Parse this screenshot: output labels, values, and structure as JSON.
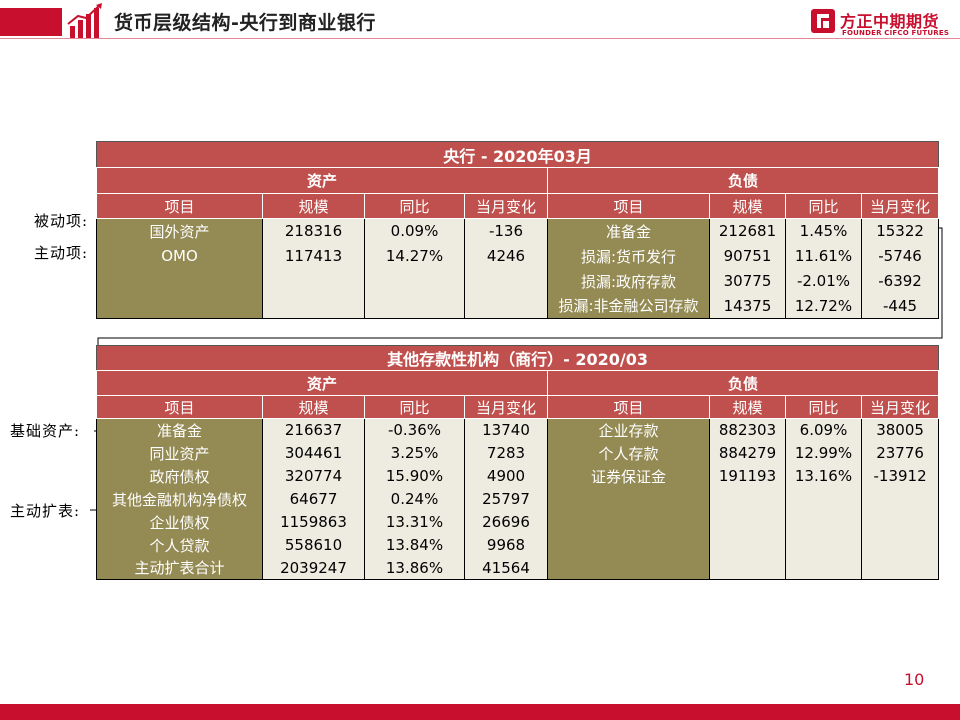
{
  "header": {
    "title": "货币层级结构-央行到商业银行",
    "logo_cn": "方正中期期货",
    "logo_en": "FOUNDER CIFCO FUTURES"
  },
  "colors": {
    "brand_red": "#c8102e",
    "header_red": "#c0504d",
    "olive": "#948a54",
    "beige": "#eeece1"
  },
  "annotations": {
    "passive": "被动项:",
    "active": "主动项:",
    "base_assets": "基础资产:",
    "active_expansion": "主动扩表:"
  },
  "table1": {
    "title": "央行 - 2020年03月",
    "assets_label": "资产",
    "liabilities_label": "负债",
    "columns": [
      "项目",
      "规模",
      "同比",
      "当月变化",
      "项目",
      "规模",
      "同比",
      "当月变化"
    ],
    "rows": [
      [
        "国外资产",
        "218316",
        "0.09%",
        "-136",
        "准备金",
        "212681",
        "1.45%",
        "15322"
      ],
      [
        "OMO",
        "117413",
        "14.27%",
        "4246",
        "损漏:货币发行",
        "90751",
        "11.61%",
        "-5746"
      ],
      [
        "",
        "",
        "",
        "",
        "损漏:政府存款",
        "30775",
        "-2.01%",
        "-6392"
      ],
      [
        "",
        "",
        "",
        "",
        "损漏:非金融公司存款",
        "14375",
        "12.72%",
        "-445"
      ]
    ]
  },
  "table2": {
    "title": "其他存款性机构（商行）- 2020/03",
    "assets_label": "资产",
    "liabilities_label": "负债",
    "columns": [
      "项目",
      "规模",
      "同比",
      "当月变化",
      "项目",
      "规模",
      "同比",
      "当月变化"
    ],
    "rows": [
      [
        "准备金",
        "216637",
        "-0.36%",
        "13740",
        "企业存款",
        "882303",
        "6.09%",
        "38005"
      ],
      [
        "同业资产",
        "304461",
        "3.25%",
        "7283",
        "个人存款",
        "884279",
        "12.99%",
        "23776"
      ],
      [
        "政府债权",
        "320774",
        "15.90%",
        "4900",
        "证券保证金",
        "191193",
        "13.16%",
        "-13912"
      ],
      [
        "其他金融机构净债权",
        "64677",
        "0.24%",
        "25797",
        "",
        "",
        "",
        ""
      ],
      [
        "企业债权",
        "1159863",
        "13.31%",
        "26696",
        "",
        "",
        "",
        ""
      ],
      [
        "个人贷款",
        "558610",
        "13.84%",
        "9968",
        "",
        "",
        "",
        ""
      ],
      [
        "主动扩表合计",
        "2039247",
        "13.86%",
        "41564",
        "",
        "",
        "",
        ""
      ]
    ]
  },
  "page_number": "10"
}
